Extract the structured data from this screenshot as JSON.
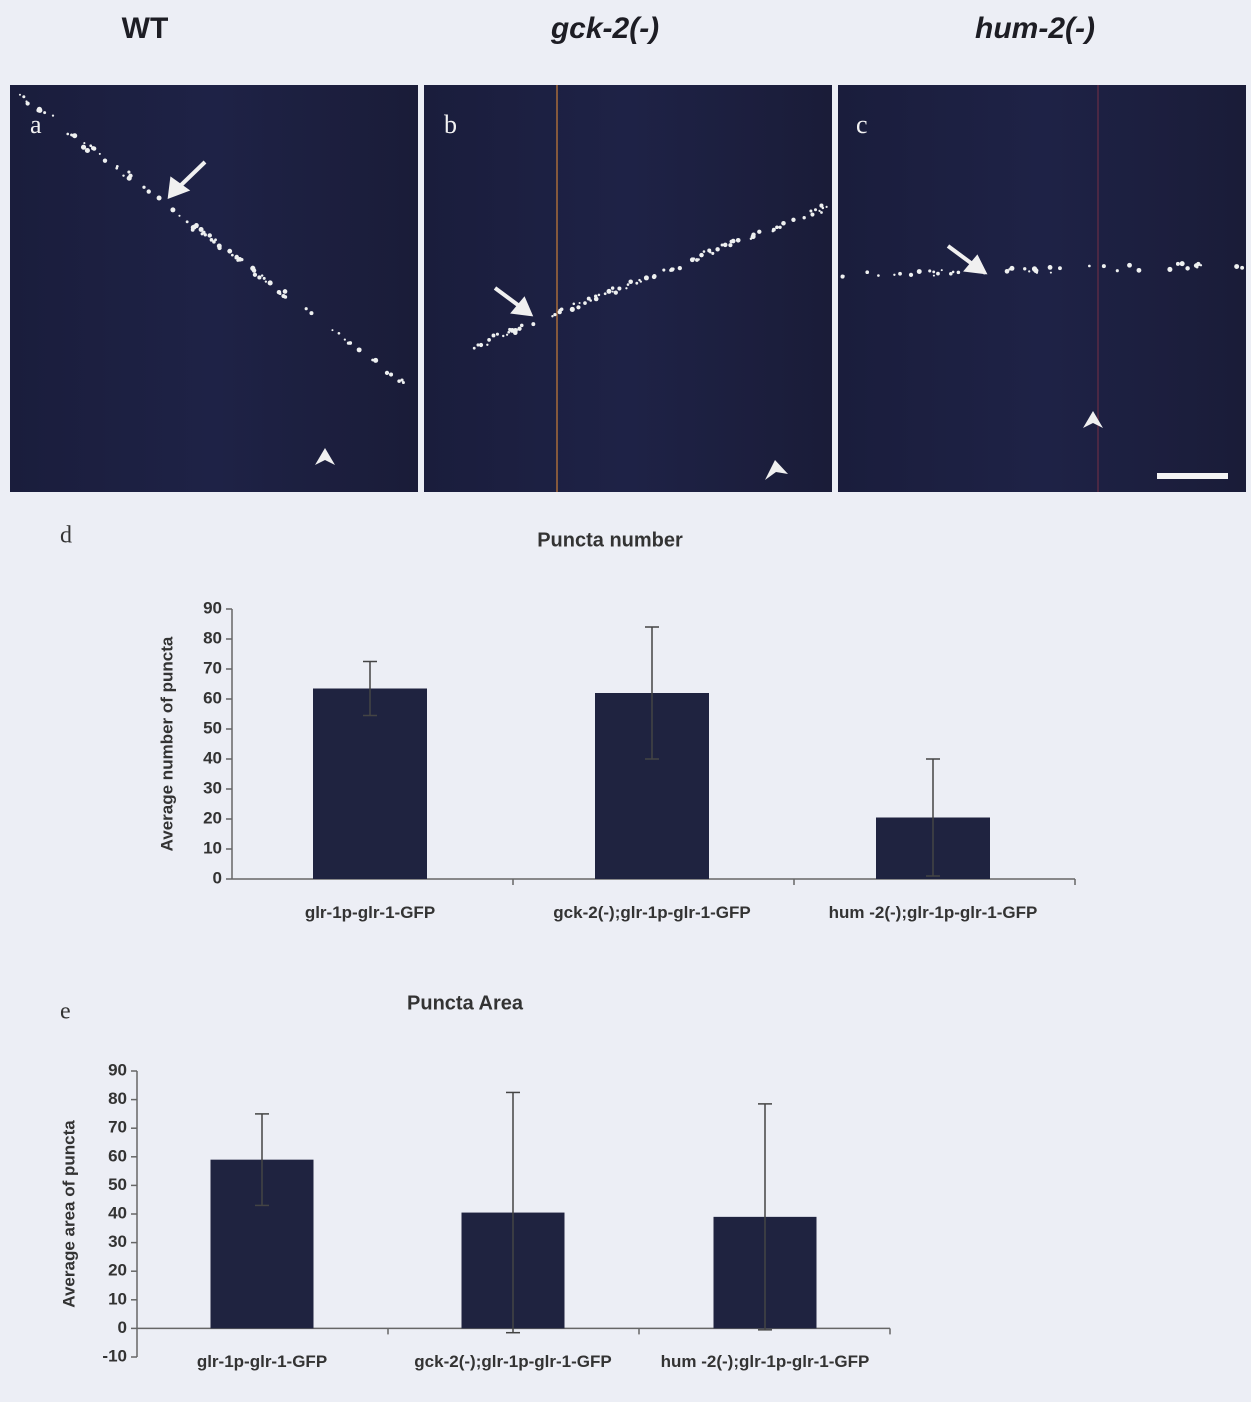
{
  "panel_headers": [
    "WT",
    "gck-2(-)",
    "hum-2(-)"
  ],
  "panel_letters": [
    "a",
    "b",
    "c"
  ],
  "chart_data": [
    {
      "type": "bar",
      "letter": "d",
      "title": "Puncta number",
      "y_label": "Average number of puncta",
      "categories": [
        "glr-1p-glr-1-GFP",
        "gck-2(-);glr-1p-glr-1-GFP",
        "hum -2(-);glr-1p-glr-1-GFP"
      ],
      "values": [
        63.5,
        62,
        20.5
      ],
      "errors": [
        9,
        22,
        19.5
      ],
      "color": "#1f2340",
      "ylim": [
        0,
        90
      ],
      "yticks": [
        0,
        10,
        20,
        30,
        40,
        50,
        60,
        70,
        80,
        90
      ]
    },
    {
      "type": "bar",
      "letter": "e",
      "title": "Puncta Area",
      "y_label": "Average area of puncta",
      "categories": [
        "glr-1p-glr-1-GFP",
        "gck-2(-);glr-1p-glr-1-GFP",
        "hum -2(-);glr-1p-glr-1-GFP"
      ],
      "values": [
        59,
        40.5,
        39
      ],
      "errors": [
        16,
        42,
        39.5
      ],
      "color": "#1f2340",
      "ylim": [
        -10,
        90
      ],
      "yticks": [
        -10,
        0,
        10,
        20,
        30,
        40,
        50,
        60,
        70,
        80,
        90
      ]
    }
  ]
}
